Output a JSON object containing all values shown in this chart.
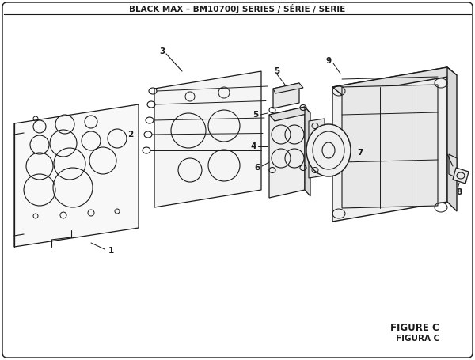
{
  "title": "BLACK MAX – BM10700J SERIES / SÉRIE / SERIE",
  "figure_label": "FIGURE C",
  "figura_label": "FIGURA C",
  "bg_color": "#ffffff",
  "line_color": "#1a1a1a",
  "title_fontsize": 7.5,
  "label_fontsize": 7.5,
  "figure_label_fontsize": 8.5
}
